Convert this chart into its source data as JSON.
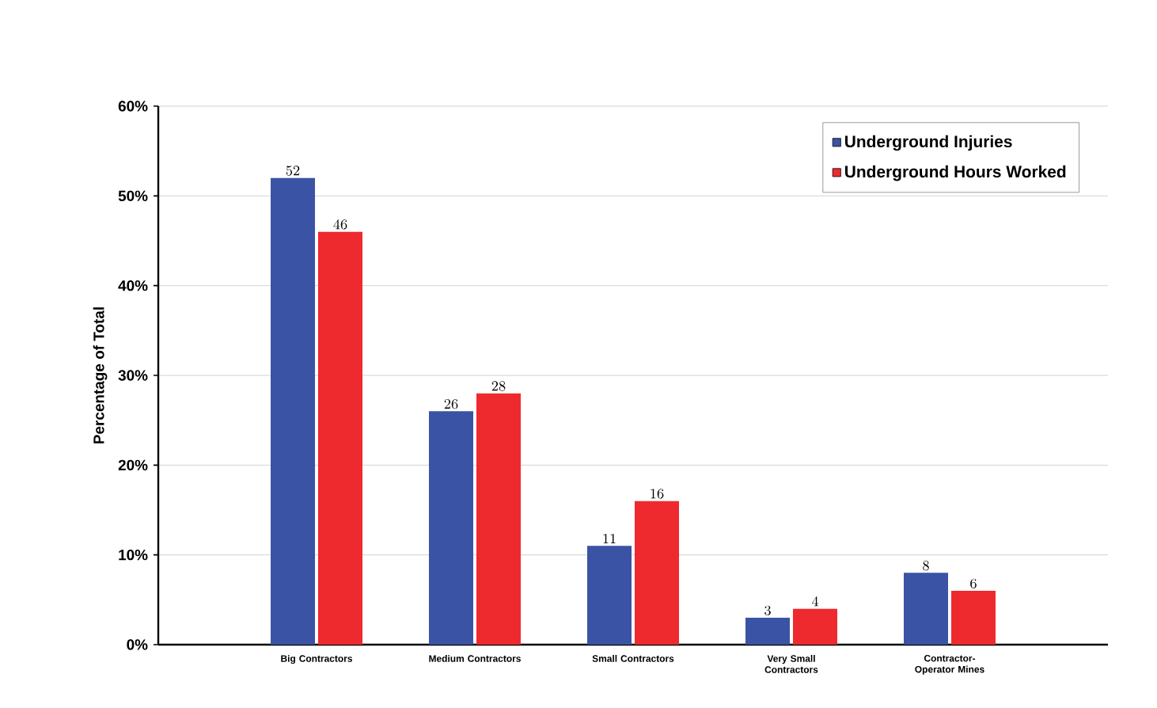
{
  "chart_data": {
    "type": "bar",
    "ylabel": "Percentage of Total",
    "categories": [
      "Big Contractors",
      "Medium Contractors",
      "Small Contractors",
      "Very Small Contractors",
      "Contractor-Operator Mines"
    ],
    "series": [
      {
        "name": "Underground Injuries",
        "color": "#3a53a4",
        "values": [
          52,
          26,
          11,
          3,
          8
        ]
      },
      {
        "name": "Underground Hours Worked",
        "color": "#ee2a2e",
        "values": [
          46,
          28,
          16,
          4,
          6
        ]
      }
    ],
    "ylim": [
      0,
      60
    ],
    "yticks": [
      {
        "value": 0,
        "label": "0%"
      },
      {
        "value": 10,
        "label": "10%"
      },
      {
        "value": 20,
        "label": "20%"
      },
      {
        "value": 30,
        "label": "30%"
      },
      {
        "value": 40,
        "label": "40%"
      },
      {
        "value": 50,
        "label": "50%"
      },
      {
        "value": 60,
        "label": "60%"
      }
    ],
    "grid": "y",
    "legend": "top right",
    "data_labels": true
  }
}
